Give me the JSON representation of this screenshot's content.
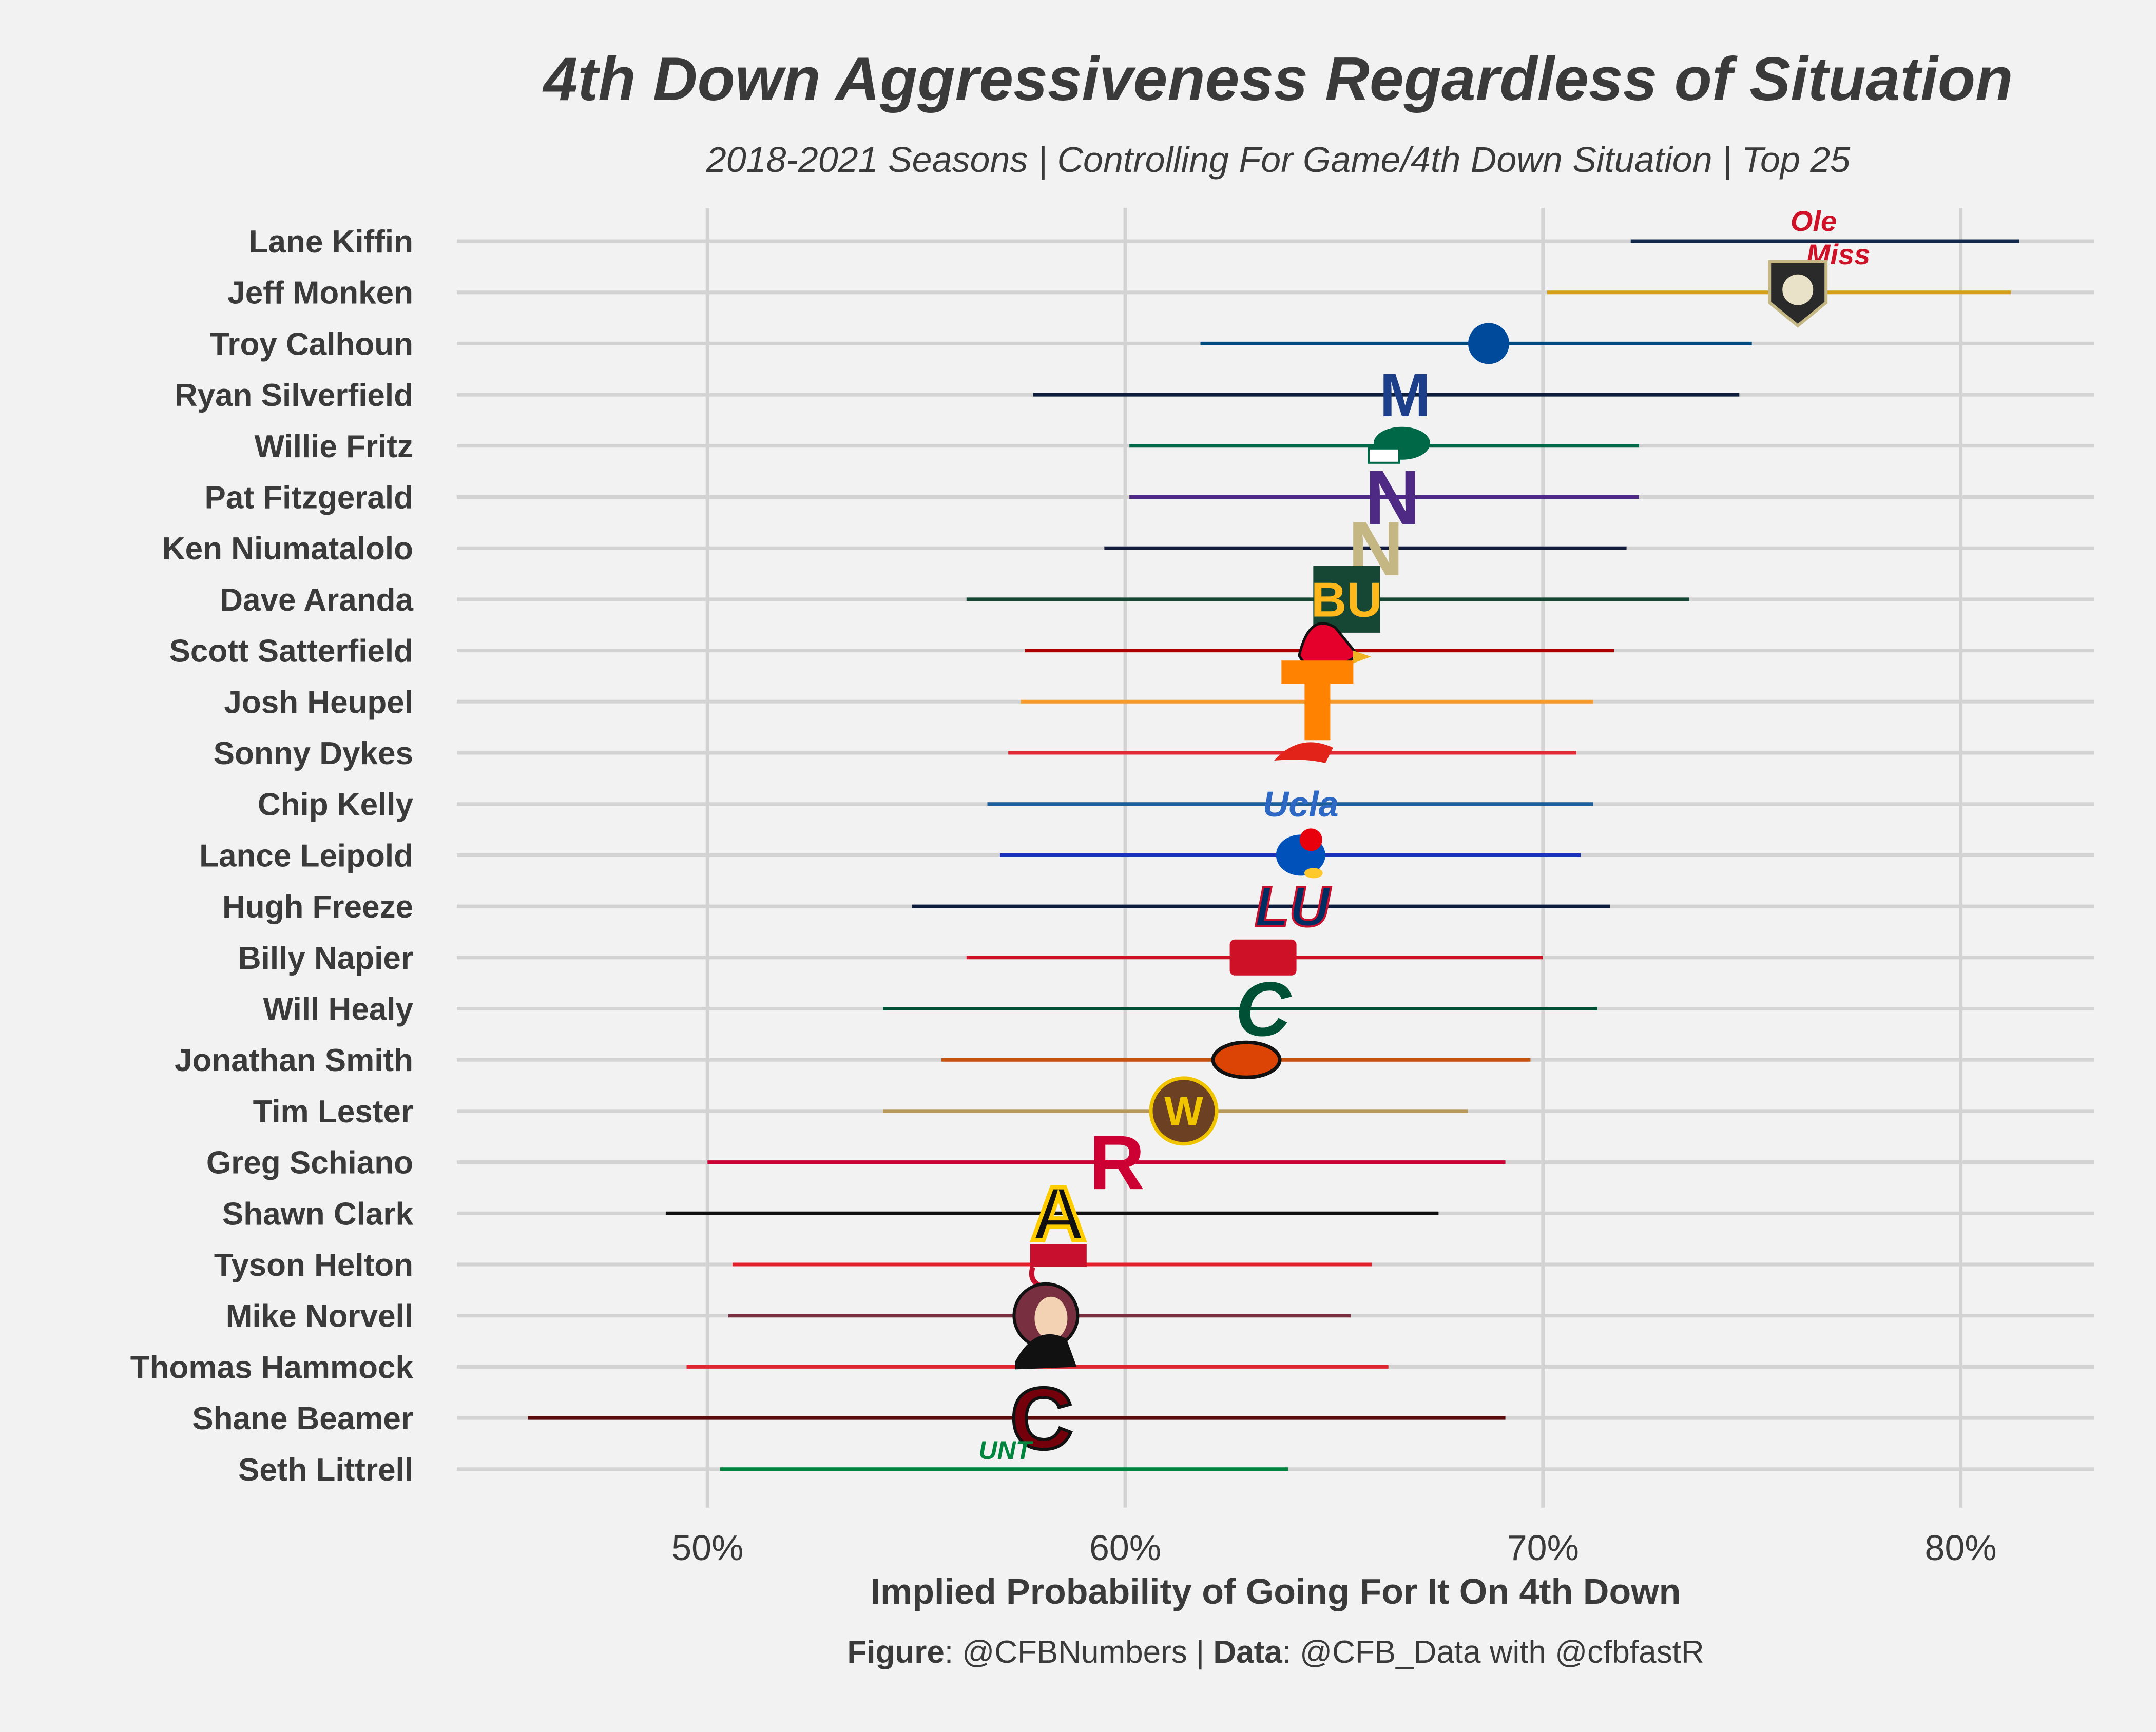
{
  "chart_data": {
    "type": "range",
    "title": "4th Down Aggressiveness Regardless of Situation",
    "subtitle": "2018-2021 Seasons | Controlling For Game/4th Down Situation | Top 25",
    "xlabel": "Implied Probability of Going For It On 4th Down",
    "xlim": [
      0.44,
      0.832
    ],
    "x_ticks": [
      0.5,
      0.6,
      0.7,
      0.8
    ],
    "x_tick_labels": [
      "50%",
      "60%",
      "70%",
      "80%"
    ],
    "grid": true,
    "caption": {
      "figure_label": "Figure",
      "figure_value": ": @CFBNumbers | ",
      "data_label": "Data",
      "data_value": ": @CFB_Data with @cfbfastR"
    },
    "series": [
      {
        "coach": "Lane Kiffin",
        "low": 0.721,
        "estimate": 0.767,
        "high": 0.814,
        "color": "#13294b",
        "logo": "Ole Miss",
        "logo_color": "#ce1126"
      },
      {
        "coach": "Jeff Monken",
        "low": 0.701,
        "estimate": 0.761,
        "high": 0.812,
        "color": "#d4a017",
        "logo": "Army",
        "logo_color": "#2a2a2a"
      },
      {
        "coach": "Troy Calhoun",
        "low": 0.618,
        "estimate": 0.687,
        "high": 0.75,
        "color": "#004a7b",
        "logo": "AF",
        "logo_color": "#004a9c"
      },
      {
        "coach": "Ryan Silverfield",
        "low": 0.578,
        "estimate": 0.667,
        "high": 0.747,
        "color": "#0c1c3c",
        "logo": "M",
        "logo_color": "#1d3f8a"
      },
      {
        "coach": "Willie Fritz",
        "low": 0.601,
        "estimate": 0.665,
        "high": 0.723,
        "color": "#006747",
        "logo": "Tulane",
        "logo_color": "#006747"
      },
      {
        "coach": "Pat Fitzgerald",
        "low": 0.601,
        "estimate": 0.664,
        "high": 0.723,
        "color": "#4e2a84",
        "logo": "N",
        "logo_color": "#4e2a84"
      },
      {
        "coach": "Ken Niumatalolo",
        "low": 0.595,
        "estimate": 0.66,
        "high": 0.72,
        "color": "#131c3b",
        "logo": "N",
        "logo_color": "#c5b783"
      },
      {
        "coach": "Dave Aranda",
        "low": 0.562,
        "estimate": 0.653,
        "high": 0.735,
        "color": "#154734",
        "logo": "BU",
        "logo_color": "#ffb81c"
      },
      {
        "coach": "Scott Satterfield",
        "low": 0.576,
        "estimate": 0.649,
        "high": 0.717,
        "color": "#ad0000",
        "logo": "Cardinal",
        "logo_color": "#e4002b"
      },
      {
        "coach": "Josh Heupel",
        "low": 0.575,
        "estimate": 0.646,
        "high": 0.712,
        "color": "#f79a2d",
        "logo": "T",
        "logo_color": "#ff8200"
      },
      {
        "coach": "Sonny Dykes",
        "low": 0.572,
        "estimate": 0.643,
        "high": 0.708,
        "color": "#dd2a35",
        "logo": "SMU",
        "logo_color": "#e2231a"
      },
      {
        "coach": "Chip Kelly",
        "low": 0.567,
        "estimate": 0.642,
        "high": 0.712,
        "color": "#1b5e9c",
        "logo": "Ucla",
        "logo_color": "#2d68c4"
      },
      {
        "coach": "Lance Leipold",
        "low": 0.57,
        "estimate": 0.642,
        "high": 0.709,
        "color": "#1a33b8",
        "logo": "KU",
        "logo_color": "#0051ba"
      },
      {
        "coach": "Hugh Freeze",
        "low": 0.549,
        "estimate": 0.64,
        "high": 0.716,
        "color": "#0c1a3c",
        "logo": "LU",
        "logo_color": "#002d62"
      },
      {
        "coach": "Billy Napier",
        "low": 0.562,
        "estimate": 0.633,
        "high": 0.7,
        "color": "#ce1126",
        "logo": "Ragin Cajuns",
        "logo_color": "#ce1126"
      },
      {
        "coach": "Will Healy",
        "low": 0.542,
        "estimate": 0.633,
        "high": 0.713,
        "color": "#005035",
        "logo": "C",
        "logo_color": "#005035"
      },
      {
        "coach": "Jonathan Smith",
        "low": 0.556,
        "estimate": 0.629,
        "high": 0.697,
        "color": "#c5530c",
        "logo": "Beaver",
        "logo_color": "#dc4405"
      },
      {
        "coach": "Tim Lester",
        "low": 0.542,
        "estimate": 0.614,
        "high": 0.682,
        "color": "#b5985a",
        "logo": "W",
        "logo_color": "#6c4023"
      },
      {
        "coach": "Greg Schiano",
        "low": 0.5,
        "estimate": 0.598,
        "high": 0.691,
        "color": "#cc0033",
        "logo": "R",
        "logo_color": "#cc0033"
      },
      {
        "coach": "Shawn Clark",
        "low": 0.49,
        "estimate": 0.584,
        "high": 0.675,
        "color": "#111111",
        "logo": "A",
        "logo_color": "#111111"
      },
      {
        "coach": "Tyson Helton",
        "low": 0.506,
        "estimate": 0.584,
        "high": 0.659,
        "color": "#e41e2b",
        "logo": "WKU",
        "logo_color": "#c8102e"
      },
      {
        "coach": "Mike Norvell",
        "low": 0.505,
        "estimate": 0.581,
        "high": 0.654,
        "color": "#782f40",
        "logo": "Seminole",
        "logo_color": "#782f40"
      },
      {
        "coach": "Thomas Hammock",
        "low": 0.495,
        "estimate": 0.581,
        "high": 0.663,
        "color": "#e1262d",
        "logo": "NIU",
        "logo_color": "#c8102e"
      },
      {
        "coach": "Shane Beamer",
        "low": 0.457,
        "estimate": 0.58,
        "high": 0.691,
        "color": "#5a0c0c",
        "logo": "Gamecock",
        "logo_color": "#73000a"
      },
      {
        "coach": "Seth Littrell",
        "low": 0.503,
        "estimate": 0.57,
        "high": 0.639,
        "color": "#00853e",
        "logo": "UNT",
        "logo_color": "#00853e"
      }
    ]
  }
}
